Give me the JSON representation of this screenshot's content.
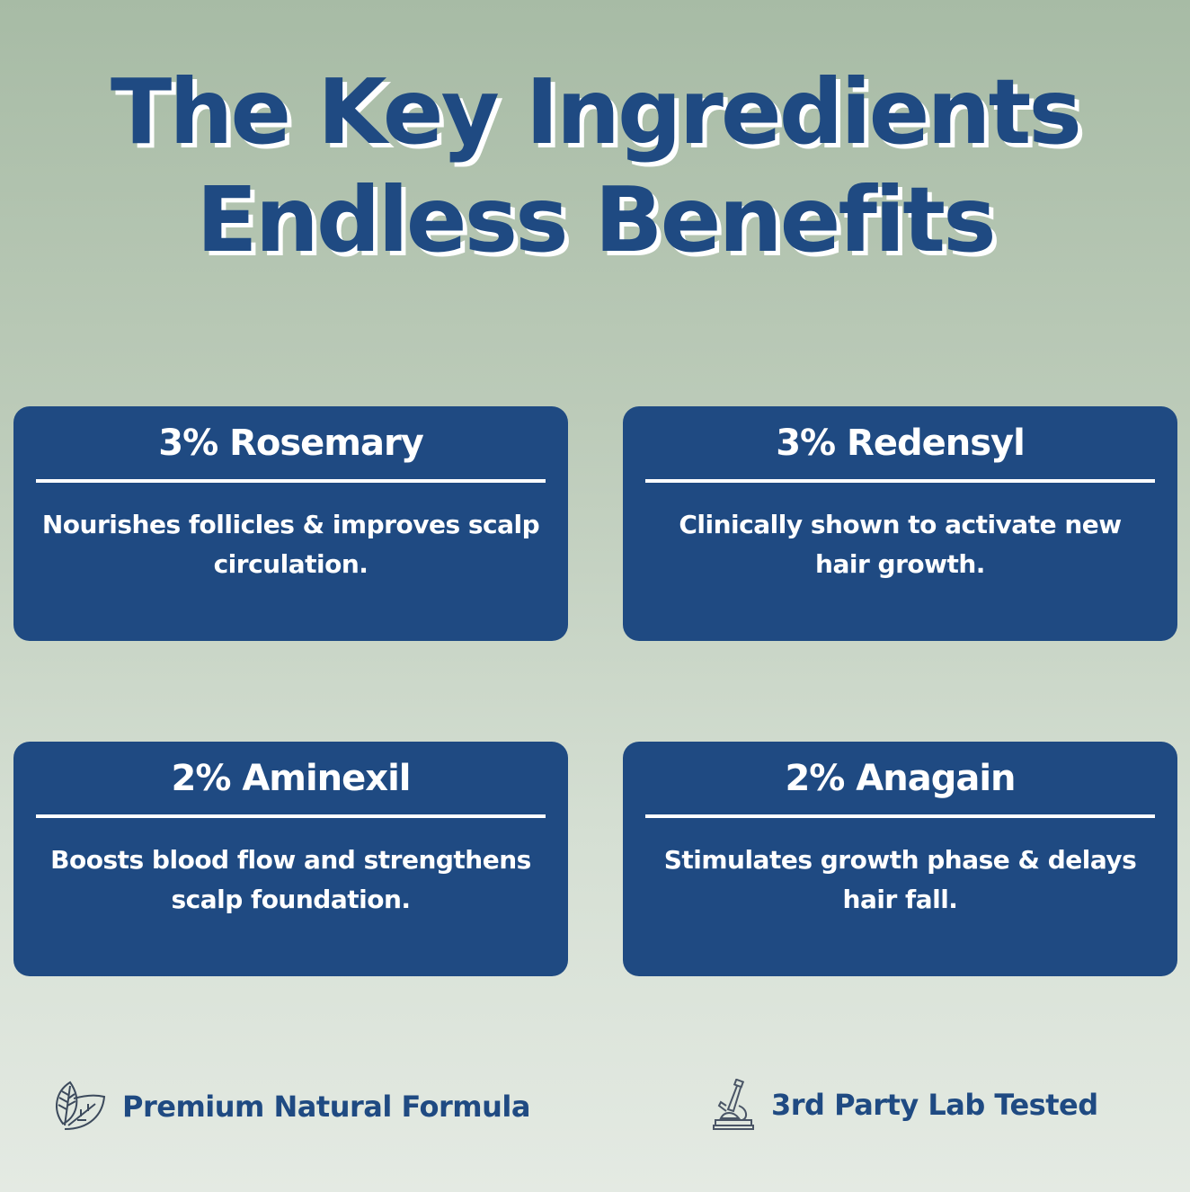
{
  "header": {
    "line1": "The Key Ingredients",
    "line2": "Endless Benefits"
  },
  "cards": [
    {
      "name": "3% Rosemary",
      "desc": "Nourishes follicles & improves scalp circulation."
    },
    {
      "name": "3% Redensyl",
      "desc": "Clinically shown to activate new hair growth."
    },
    {
      "name": "2% Aminexil",
      "desc": "Boosts blood flow and strengthens scalp foundation."
    },
    {
      "name": "2% Anagain",
      "desc": "Stimulates growth phase & delays hair fall."
    }
  ],
  "footer": [
    {
      "icon": "leaf-icon",
      "label": "Premium Natural Formula"
    },
    {
      "icon": "microscope-icon",
      "label": "3rd Party Lab Tested"
    }
  ],
  "colors": {
    "brand": "#1f4a82",
    "text_on_card": "#ffffff",
    "background_top": "#a7bba5",
    "background_bottom": "#e4eae3"
  }
}
